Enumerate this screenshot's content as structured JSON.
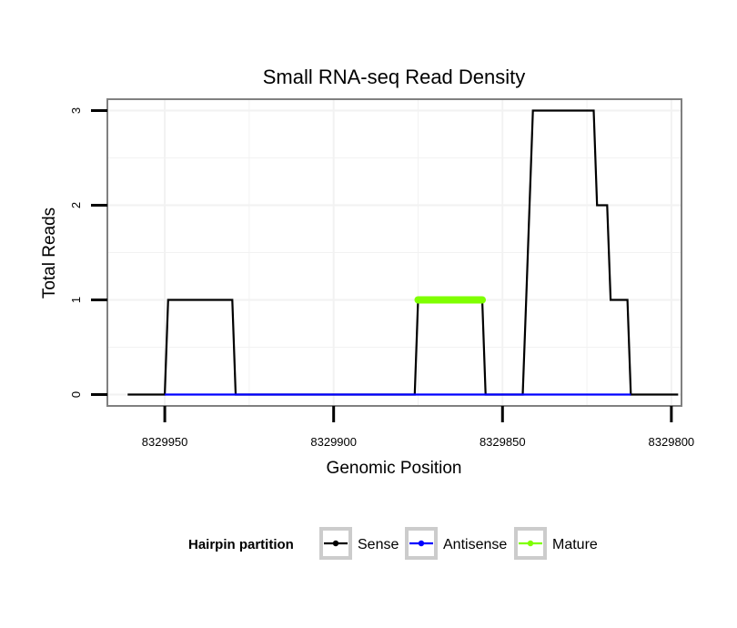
{
  "chart_data": {
    "type": "line",
    "title": "Small RNA-seq Read Density",
    "xlabel": "Genomic Position",
    "ylabel": "Total Reads",
    "x_reversed": true,
    "xlim": [
      8329967,
      8329797
    ],
    "ylim": [
      -0.12,
      3.12
    ],
    "x_ticks": [
      8329950,
      8329900,
      8329850,
      8329800
    ],
    "x_tick_labels": [
      "8329950",
      "8329900",
      "8329850",
      "8329800"
    ],
    "y_ticks": [
      0,
      1,
      2,
      3
    ],
    "y_tick_labels": [
      "0",
      "1",
      "2",
      "3"
    ],
    "grid": true,
    "legend_position": "bottom",
    "legend_title": "Hairpin partition",
    "series": [
      {
        "name": "Sense",
        "color": "#000000",
        "points": [
          [
            8329961,
            0
          ],
          [
            8329950,
            0
          ],
          [
            8329949,
            1
          ],
          [
            8329930,
            1
          ],
          [
            8329929,
            0
          ],
          [
            8329876,
            0
          ],
          [
            8329875,
            1
          ],
          [
            8329856,
            1
          ],
          [
            8329855,
            0
          ],
          [
            8329844,
            0
          ],
          [
            8329843,
            1
          ],
          [
            8329841,
            3
          ],
          [
            8329823,
            3
          ],
          [
            8329822,
            2
          ],
          [
            8329819,
            2
          ],
          [
            8329818,
            1
          ],
          [
            8329813,
            1
          ],
          [
            8329812,
            0
          ],
          [
            8329798,
            0
          ]
        ]
      },
      {
        "name": "Antisense",
        "color": "#0000ff",
        "points": [
          [
            8329950,
            0
          ],
          [
            8329929,
            0
          ],
          [
            8329875,
            0
          ],
          [
            8329855,
            0
          ],
          [
            8329843,
            0
          ],
          [
            8329812,
            0
          ]
        ]
      },
      {
        "name": "Mature",
        "color": "#7fff00",
        "points": [
          [
            8329875,
            1
          ],
          [
            8329856,
            1
          ]
        ]
      }
    ]
  }
}
